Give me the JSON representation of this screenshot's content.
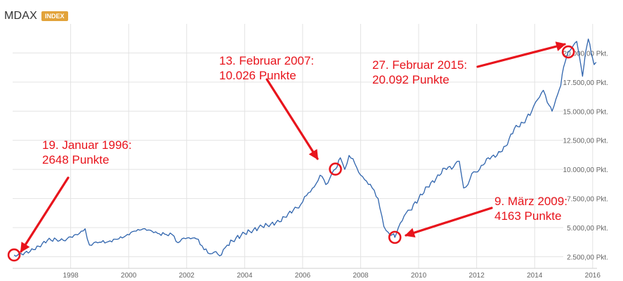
{
  "header": {
    "title": "MDAX",
    "badge": "INDEX"
  },
  "colors": {
    "line": "#2f64ad",
    "annotation": "#e8141c",
    "grid": "#e3e3e3",
    "badge": "#e2a33b"
  },
  "chart_data": {
    "type": "line",
    "title": "MDAX",
    "xlabel": "",
    "ylabel": "",
    "xlim": [
      1996.0,
      2016.15
    ],
    "ylim": [
      1500,
      22500
    ],
    "grid": true,
    "x_ticks": [
      1998,
      2000,
      2002,
      2004,
      2006,
      2008,
      2010,
      2012,
      2014,
      2016
    ],
    "x_tick_labels": [
      "1998",
      "2000",
      "2002",
      "2004",
      "2006",
      "2008",
      "2010",
      "2012",
      "2014",
      "2016"
    ],
    "y_ticks": [
      2500,
      5000,
      7500,
      10000,
      12500,
      15000,
      17500,
      20000
    ],
    "y_tick_labels": [
      "2.500,00 Pkt.",
      "5.000,00 Pkt.",
      "7.500,00 Pkt.",
      "10.000,00 Pkt.",
      "12.500,00 Pkt.",
      "15.000,00 Pkt.",
      "17.500,00 Pkt.",
      "20.000,00 Pkt."
    ],
    "series": [
      {
        "name": "MDAX",
        "x": [
          1996.05,
          1996.3,
          1996.6,
          1996.9,
          1997.2,
          1997.5,
          1997.75,
          1998.0,
          1998.3,
          1998.5,
          1998.65,
          1998.8,
          1999.0,
          1999.3,
          1999.6,
          1999.9,
          2000.2,
          2000.5,
          2000.8,
          2001.0,
          2001.3,
          2001.5,
          2001.7,
          2001.9,
          2002.2,
          2002.4,
          2002.6,
          2002.8,
          2002.95,
          2003.2,
          2003.4,
          2003.7,
          2004.0,
          2004.3,
          2004.6,
          2004.9,
          2005.2,
          2005.5,
          2005.8,
          2006.0,
          2006.2,
          2006.4,
          2006.6,
          2006.8,
          2007.0,
          2007.13,
          2007.3,
          2007.45,
          2007.6,
          2007.8,
          2008.0,
          2008.2,
          2008.4,
          2008.6,
          2008.8,
          2008.95,
          2009.1,
          2009.18,
          2009.3,
          2009.5,
          2009.7,
          2010.0,
          2010.3,
          2010.6,
          2010.9,
          2011.2,
          2011.4,
          2011.55,
          2011.7,
          2011.9,
          2012.1,
          2012.4,
          2012.7,
          2013.0,
          2013.3,
          2013.6,
          2013.9,
          2014.1,
          2014.3,
          2014.5,
          2014.6,
          2014.8,
          2014.9,
          2015.0,
          2015.16,
          2015.3,
          2015.45,
          2015.55,
          2015.65,
          2015.75,
          2015.85,
          2015.95,
          2016.05,
          2016.12
        ],
        "values": [
          2648,
          2750,
          2950,
          3400,
          3900,
          4000,
          3900,
          4200,
          4500,
          4900,
          3500,
          3700,
          3750,
          3800,
          4000,
          4300,
          4700,
          4900,
          4700,
          4500,
          4400,
          4400,
          3700,
          4100,
          4100,
          4000,
          3100,
          2750,
          2900,
          2650,
          3500,
          4100,
          4500,
          4800,
          5100,
          5300,
          5500,
          6200,
          6700,
          7200,
          8000,
          8500,
          9500,
          8700,
          9600,
          10026,
          11000,
          10000,
          11200,
          10500,
          9500,
          9000,
          8400,
          7500,
          5100,
          4600,
          4400,
          4163,
          5000,
          6000,
          6500,
          7500,
          8500,
          9200,
          10100,
          10200,
          10700,
          8400,
          8700,
          9800,
          10000,
          11000,
          11200,
          12000,
          13500,
          14000,
          15000,
          16000,
          16800,
          15500,
          15000,
          16500,
          17200,
          18800,
          20092,
          20500,
          21000,
          19600,
          18000,
          20000,
          21200,
          20000,
          19000,
          19200
        ]
      }
    ],
    "annotations": [
      {
        "line1": "19. Januar 1996:",
        "line2": "2648 Punkte",
        "x": 1996.05,
        "y": 2648
      },
      {
        "line1": "13. Februar 2007:",
        "line2": "10.026 Punkte",
        "x": 2007.13,
        "y": 10026
      },
      {
        "line1": "9. März 2009:",
        "line2": "4163 Punkte",
        "x": 2009.18,
        "y": 4163
      },
      {
        "line1": "27. Februar 2015:",
        "line2": "20.092 Punkte",
        "x": 2015.16,
        "y": 20092
      }
    ]
  }
}
